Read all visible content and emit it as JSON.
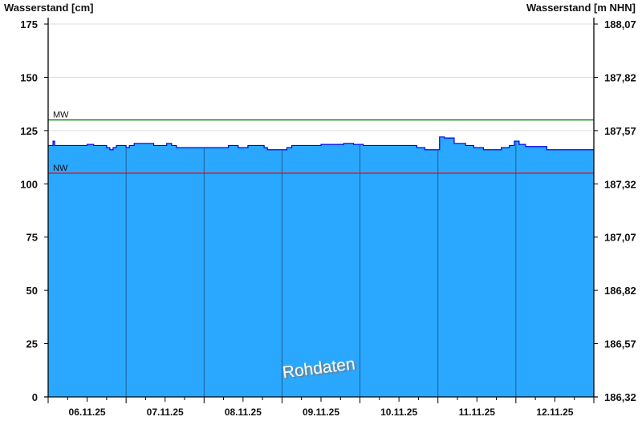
{
  "chart_data": {
    "type": "area",
    "ylabel_left": "Wasserstand [cm]",
    "ylabel_right": "Wasserstand [m NHN]",
    "ylim": [
      0,
      175
    ],
    "yticks_left": [
      "0",
      "25",
      "50",
      "75",
      "100",
      "125",
      "150",
      "175"
    ],
    "yticks_right": [
      "186,32",
      "186,57",
      "186,82",
      "187,07",
      "187,32",
      "187,57",
      "187,82",
      "188,07"
    ],
    "xlim": [
      "2025-11-06T00:00",
      "2025-11-13T00:00"
    ],
    "xtick_labels": [
      "06.11.25",
      "07.11.25",
      "08.11.25",
      "09.11.25",
      "10.11.25",
      "11.11.25",
      "12.11.25"
    ],
    "grid": true,
    "reference_lines": [
      {
        "name": "MW",
        "value": 130,
        "color": "#008000"
      },
      {
        "name": "NW",
        "value": 105,
        "color": "#ff0000"
      }
    ],
    "watermark": "Rohdaten",
    "colors": {
      "fill": "#2aa8ff",
      "line": "#0000ee",
      "day_lines": "#1d5f8f",
      "grid": "#dddddd"
    },
    "series": [
      {
        "points": [
          [
            "2025-11-06T00:00",
            118
          ],
          [
            "2025-11-06T01:30",
            120
          ],
          [
            "2025-11-06T02:00",
            118
          ],
          [
            "2025-11-06T12:00",
            118.5
          ],
          [
            "2025-11-06T14:00",
            118
          ],
          [
            "2025-11-06T18:00",
            117
          ],
          [
            "2025-11-06T19:00",
            116
          ],
          [
            "2025-11-06T20:00",
            117
          ],
          [
            "2025-11-06T21:00",
            118
          ],
          [
            "2025-11-07T00:00",
            117
          ],
          [
            "2025-11-07T01:00",
            118
          ],
          [
            "2025-11-07T02:30",
            119
          ],
          [
            "2025-11-07T08:30",
            118
          ],
          [
            "2025-11-07T12:30",
            119
          ],
          [
            "2025-11-07T14:00",
            118
          ],
          [
            "2025-11-07T15:30",
            117
          ],
          [
            "2025-11-08T07:30",
            118
          ],
          [
            "2025-11-08T10:30",
            117
          ],
          [
            "2025-11-08T13:30",
            118
          ],
          [
            "2025-11-08T18:30",
            117
          ],
          [
            "2025-11-08T19:30",
            116
          ],
          [
            "2025-11-09T01:30",
            117
          ],
          [
            "2025-11-09T03:00",
            118
          ],
          [
            "2025-11-09T12:00",
            118.5
          ],
          [
            "2025-11-09T19:00",
            119
          ],
          [
            "2025-11-09T22:00",
            118.5
          ],
          [
            "2025-11-10T01:00",
            118
          ],
          [
            "2025-11-10T17:30",
            117
          ],
          [
            "2025-11-10T20:00",
            116
          ],
          [
            "2025-11-10T23:30",
            116
          ],
          [
            "2025-11-11T00:30",
            122
          ],
          [
            "2025-11-11T02:00",
            121.5
          ],
          [
            "2025-11-11T05:00",
            119
          ],
          [
            "2025-11-11T08:30",
            118
          ],
          [
            "2025-11-11T11:00",
            117
          ],
          [
            "2025-11-11T14:00",
            116
          ],
          [
            "2025-11-11T19:30",
            117
          ],
          [
            "2025-11-11T22:00",
            118
          ],
          [
            "2025-11-11T23:30",
            120
          ],
          [
            "2025-11-12T01:00",
            118.5
          ],
          [
            "2025-11-12T03:00",
            117.5
          ],
          [
            "2025-11-12T09:30",
            116
          ],
          [
            "2025-11-13T00:00",
            116
          ]
        ]
      }
    ]
  }
}
